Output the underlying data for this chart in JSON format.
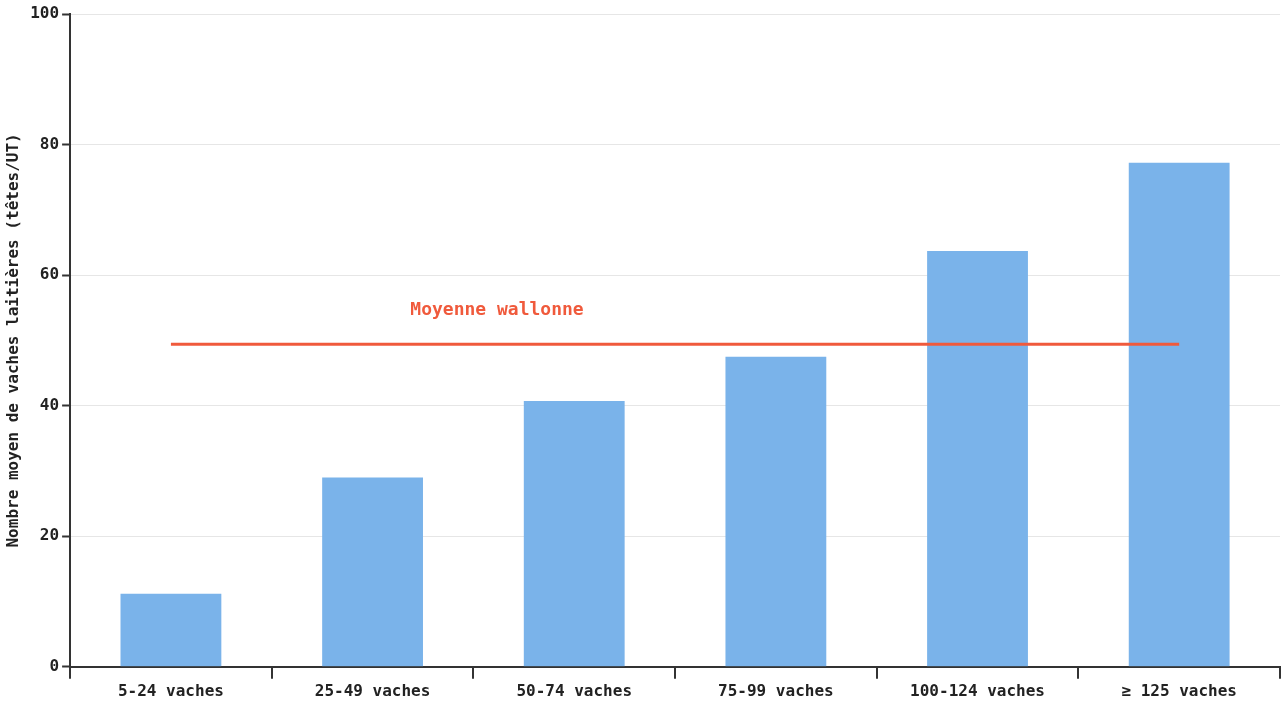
{
  "chart_data": {
    "type": "bar",
    "ylabel": "Nombre moyen de vaches laitières (têtes/UT)",
    "categories": [
      "5-24 vaches",
      "25-49 vaches",
      "50-74 vaches",
      "75-99 vaches",
      "100-124 vaches",
      "≥ 125 vaches"
    ],
    "values": [
      11.2,
      29.0,
      40.7,
      47.5,
      63.7,
      77.2
    ],
    "color": "#7ab3ea",
    "ylim": [
      0,
      100
    ],
    "yticks": [
      0,
      20,
      40,
      60,
      80,
      100
    ],
    "grid": "y",
    "legend": false,
    "ref_lines": [
      {
        "axis": "y",
        "value": 49.4,
        "label": "Moyenne wallonne",
        "color": "#f05a3c"
      }
    ]
  }
}
